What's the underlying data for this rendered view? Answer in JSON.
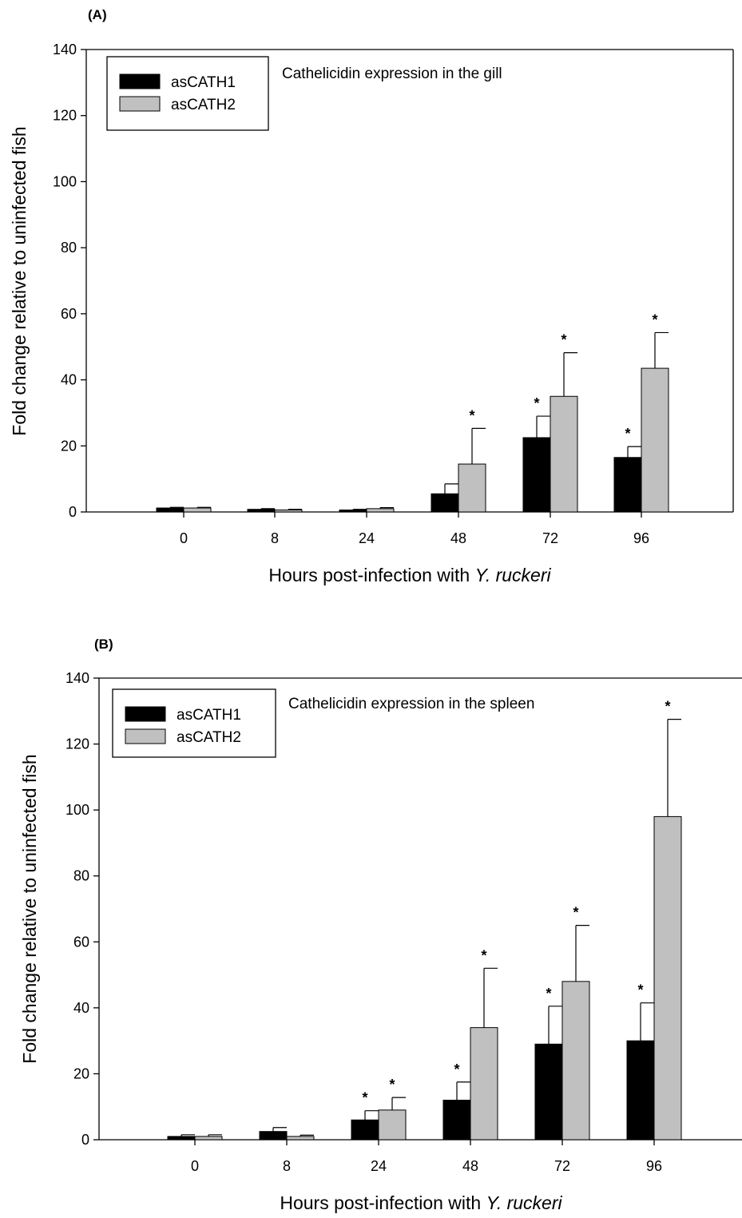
{
  "chart_data": [
    {
      "type": "bar",
      "panel_label": "(A)",
      "annotation": "Cathelicidin expression in the gill",
      "xlabel": "Hours post-infection with ",
      "xlabel_italic": "Y. ruckeri",
      "ylabel": "Fold change relative to uninfected fish",
      "ylim": [
        0,
        140
      ],
      "yticks": [
        "0",
        "20",
        "40",
        "60",
        "80",
        "100",
        "120",
        "140"
      ],
      "categories": [
        "0",
        "8",
        "24",
        "48",
        "72",
        "96"
      ],
      "series": [
        {
          "name": "asCATH1",
          "color": "#000000",
          "values": [
            1.2,
            0.8,
            0.6,
            5.5,
            22.5,
            16.5
          ],
          "errors": [
            0.2,
            0.2,
            0.2,
            3.0,
            6.5,
            3.3
          ],
          "significant": [
            false,
            false,
            false,
            false,
            true,
            true
          ]
        },
        {
          "name": "asCATH2",
          "color": "#c0c0c0",
          "values": [
            1.2,
            0.6,
            1.0,
            14.5,
            35.0,
            43.5
          ],
          "errors": [
            0.2,
            0.2,
            0.3,
            10.8,
            13.2,
            10.8
          ],
          "significant": [
            false,
            false,
            false,
            true,
            true,
            true
          ]
        }
      ],
      "legend_position": "top-left",
      "star_symbol": "*"
    },
    {
      "type": "bar",
      "panel_label": "(B)",
      "annotation": "Cathelicidin expression in the spleen",
      "xlabel": "Hours post-infection with ",
      "xlabel_italic": "Y. ruckeri",
      "ylabel": "Fold change relative to uninfected fish",
      "ylim": [
        0,
        140
      ],
      "yticks": [
        "0",
        "20",
        "40",
        "60",
        "80",
        "100",
        "120",
        "140"
      ],
      "categories": [
        "0",
        "8",
        "24",
        "48",
        "72",
        "96"
      ],
      "series": [
        {
          "name": "asCATH1",
          "color": "#000000",
          "values": [
            1.0,
            2.5,
            6.0,
            12.0,
            29.0,
            30.0
          ],
          "errors": [
            0.5,
            1.2,
            2.8,
            5.5,
            11.5,
            11.5
          ],
          "significant": [
            false,
            false,
            true,
            true,
            true,
            true
          ]
        },
        {
          "name": "asCATH2",
          "color": "#c0c0c0",
          "values": [
            1.0,
            1.0,
            9.0,
            34.0,
            48.0,
            98.0
          ],
          "errors": [
            0.5,
            0.4,
            3.8,
            18.0,
            17.0,
            29.5
          ],
          "significant": [
            false,
            false,
            true,
            true,
            true,
            true
          ]
        }
      ],
      "legend_position": "top-left",
      "star_symbol": "*"
    }
  ]
}
